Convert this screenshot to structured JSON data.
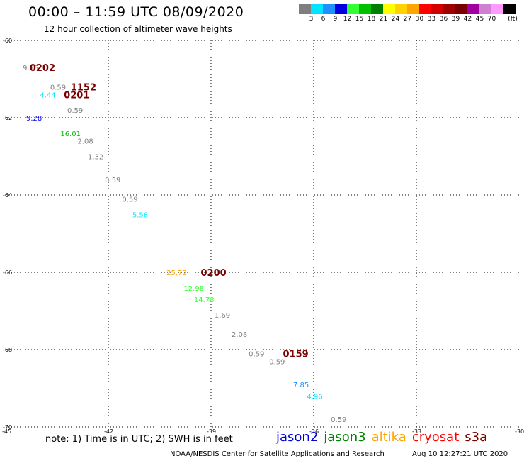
{
  "header": {
    "title": "00:00 – 11:59 UTC 08/09/2020",
    "subtitle": "12 hour collection of altimeter wave heights"
  },
  "legend": {
    "colors": [
      "#7f7f7f",
      "#00e5ff",
      "#1e90ff",
      "#0000e0",
      "#33ff33",
      "#00c000",
      "#008000",
      "#ffff00",
      "#ffd200",
      "#ffa500",
      "#ff0000",
      "#d40000",
      "#a00000",
      "#7a0000",
      "#a000a0",
      "#d080d0",
      "#ff99ff",
      "#000000"
    ],
    "ticks": [
      "3",
      "6",
      "9",
      "12",
      "15",
      "18",
      "21",
      "24",
      "27",
      "30",
      "33",
      "36",
      "39",
      "42",
      "45",
      "70"
    ],
    "unit": "(ft)"
  },
  "chart_data": {
    "type": "scatter",
    "title": "00:00 – 11:59 UTC 08/09/2020",
    "subtitle": "12 hour collection of altimeter wave heights",
    "xlim": [
      -45,
      -30
    ],
    "ylim": [
      -70,
      -60
    ],
    "xticks": [
      "-45",
      "-42",
      "-39",
      "-36",
      "-33",
      "-30"
    ],
    "yticks": [
      "-60",
      "-62",
      "-64",
      "-66",
      "-68",
      "-70"
    ],
    "grid": true,
    "unit": "ft",
    "points": [
      {
        "lon": -44.5,
        "lat": -60.7,
        "label": "9.25",
        "color": "#7f7f7f"
      },
      {
        "lon": -43.7,
        "lat": -61.2,
        "label": "0.59",
        "color": "#7f7f7f"
      },
      {
        "lon": -44.0,
        "lat": -61.4,
        "label": "4.44",
        "color": "#00e5ff"
      },
      {
        "lon": -43.2,
        "lat": -61.8,
        "label": "0.59",
        "color": "#7f7f7f"
      },
      {
        "lon": -44.4,
        "lat": -62.0,
        "label": "9.28",
        "color": "#0000e0"
      },
      {
        "lon": -43.4,
        "lat": -62.4,
        "label": "16.01",
        "color": "#00c000"
      },
      {
        "lon": -42.9,
        "lat": -62.6,
        "label": "2.08",
        "color": "#7f7f7f"
      },
      {
        "lon": -42.6,
        "lat": -63.0,
        "label": "1.32",
        "color": "#7f7f7f"
      },
      {
        "lon": -42.1,
        "lat": -63.6,
        "label": "0.59",
        "color": "#7f7f7f"
      },
      {
        "lon": -41.6,
        "lat": -64.1,
        "label": "0.59",
        "color": "#7f7f7f"
      },
      {
        "lon": -41.3,
        "lat": -64.5,
        "label": "5.58",
        "color": "#00e5ff"
      },
      {
        "lon": -40.3,
        "lat": -66.0,
        "label": "25.72",
        "color": "#ffa500"
      },
      {
        "lon": -39.8,
        "lat": -66.4,
        "label": "12.98",
        "color": "#33ff33"
      },
      {
        "lon": -39.5,
        "lat": -66.7,
        "label": "14.78",
        "color": "#33ff33"
      },
      {
        "lon": -38.9,
        "lat": -67.1,
        "label": "1.69",
        "color": "#7f7f7f"
      },
      {
        "lon": -38.4,
        "lat": -67.6,
        "label": "2.08",
        "color": "#7f7f7f"
      },
      {
        "lon": -37.9,
        "lat": -68.1,
        "label": "0.59",
        "color": "#7f7f7f"
      },
      {
        "lon": -37.3,
        "lat": -68.3,
        "label": "0.59",
        "color": "#7f7f7f"
      },
      {
        "lon": -36.6,
        "lat": -68.9,
        "label": "7.85",
        "color": "#1e90ff"
      },
      {
        "lon": -36.2,
        "lat": -69.2,
        "label": "4.96",
        "color": "#00e5ff"
      },
      {
        "lon": -35.5,
        "lat": -69.8,
        "label": "0.59",
        "color": "#7f7f7f"
      }
    ],
    "times": [
      {
        "lon": -44.3,
        "lat": -60.7,
        "label": "0202",
        "color": "#7a0000"
      },
      {
        "lon": -43.1,
        "lat": -61.2,
        "label": "1152",
        "color": "#7a0000"
      },
      {
        "lon": -43.3,
        "lat": -61.4,
        "label": "0201",
        "color": "#7a0000"
      },
      {
        "lon": -39.3,
        "lat": -66.0,
        "label": "0200",
        "color": "#7a0000"
      },
      {
        "lon": -36.9,
        "lat": -68.1,
        "label": "0159",
        "color": "#7a0000"
      }
    ]
  },
  "footer": {
    "note": "note: 1) Time is in UTC; 2) SWH is in feet",
    "satellites": [
      {
        "name": "jason2",
        "color": "#0000e0"
      },
      {
        "name": "jason3",
        "color": "#008000"
      },
      {
        "name": "altika",
        "color": "#ffa500"
      },
      {
        "name": "cryosat",
        "color": "#ff0000"
      },
      {
        "name": "s3a",
        "color": "#7a0000"
      }
    ],
    "credit": "NOAA/NESDIS Center for Satellite Applications and Research",
    "timestamp": "Aug 10 12:27:21 UTC 2020"
  }
}
